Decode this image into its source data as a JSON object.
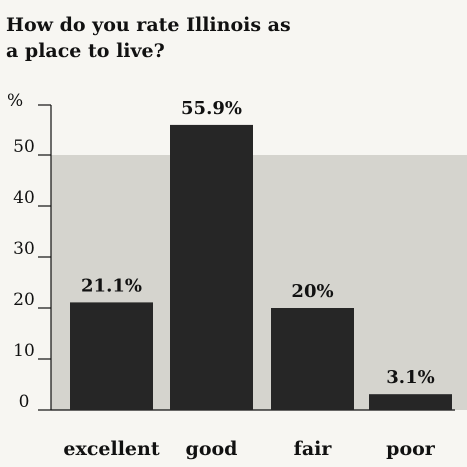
{
  "chart_data": {
    "type": "bar",
    "title": "How do you rate Illinois as a place to live?",
    "ylabel": "%",
    "xlabel": "",
    "categories": [
      "excellent",
      "good",
      "fair",
      "poor"
    ],
    "values": [
      21.1,
      55.9,
      20,
      3.1
    ],
    "data_labels": [
      "21.1%",
      "55.9%",
      "20%",
      "3.1%"
    ],
    "ylim": [
      0,
      60
    ],
    "yticks": [
      0,
      10,
      20,
      30,
      40,
      50
    ],
    "ytick_labels": [
      "0",
      "10",
      "20",
      "30",
      "40",
      "50"
    ],
    "grid": false,
    "legend": "none",
    "bar_color": "#262626",
    "background_color": "#f7f6f2",
    "shaded_region_color": "#d5d4ce"
  }
}
